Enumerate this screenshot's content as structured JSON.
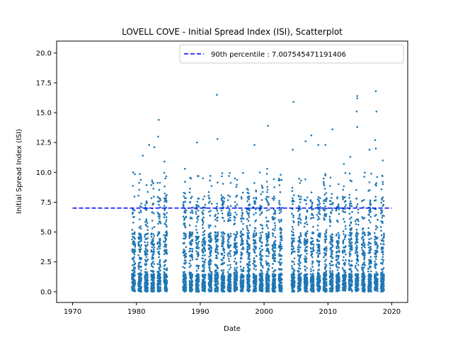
{
  "chart_data": {
    "type": "scatter",
    "title": "LOVELL COVE - Initial Spread Index (ISI), Scatterplot",
    "xlabel": "Date",
    "ylabel": "Initial Spread Index (ISI)",
    "xlim": [
      1967.5,
      2022.5
    ],
    "ylim": [
      -0.9,
      21.0
    ],
    "x_ticks": [
      1970,
      1980,
      1990,
      2000,
      2010,
      2020
    ],
    "x_tick_labels": [
      "1970",
      "1980",
      "1990",
      "2000",
      "2010",
      "2020"
    ],
    "y_ticks": [
      0.0,
      2.5,
      5.0,
      7.5,
      10.0,
      12.5,
      15.0,
      17.5,
      20.0
    ],
    "y_tick_labels": [
      "0.0",
      "2.5",
      "5.0",
      "7.5",
      "10.0",
      "12.5",
      "15.0",
      "17.5",
      "20.0"
    ],
    "grid": false,
    "legend_position": "top-right",
    "marker_color": "#1f77b4",
    "reference_line": {
      "label": "90th percentile : 7.007545471191406",
      "y": 7.007545471191406,
      "x_range": [
        1970,
        2020
      ],
      "color": "#0000ff",
      "style": "dashed"
    },
    "season_ranges": [
      [
        1979.3,
        1979.8
      ],
      [
        1980.3,
        1980.8
      ],
      [
        1981.3,
        1981.8
      ],
      [
        1982.3,
        1982.8
      ],
      [
        1983.3,
        1983.8
      ],
      [
        1984.3,
        1984.8
      ],
      [
        1987.3,
        1987.8
      ],
      [
        1988.3,
        1988.8
      ],
      [
        1989.3,
        1989.8
      ],
      [
        1990.3,
        1990.8
      ],
      [
        1991.3,
        1991.8
      ],
      [
        1992.3,
        1992.8
      ],
      [
        1993.3,
        1993.8
      ],
      [
        1994.3,
        1994.8
      ],
      [
        1995.3,
        1995.8
      ],
      [
        1996.3,
        1996.8
      ],
      [
        1997.3,
        1997.8
      ],
      [
        1998.3,
        1998.8
      ],
      [
        1999.3,
        1999.8
      ],
      [
        2000.3,
        2000.8
      ],
      [
        2001.3,
        2001.8
      ],
      [
        2002.3,
        2002.8
      ],
      [
        2004.3,
        2004.8
      ],
      [
        2005.3,
        2005.8
      ],
      [
        2006.3,
        2006.8
      ],
      [
        2007.3,
        2007.8
      ],
      [
        2008.3,
        2008.8
      ],
      [
        2009.3,
        2009.8
      ],
      [
        2010.3,
        2010.8
      ],
      [
        2011.3,
        2011.8
      ],
      [
        2012.3,
        2012.8
      ],
      [
        2013.3,
        2013.8
      ],
      [
        2014.3,
        2014.8
      ],
      [
        2015.3,
        2015.8
      ],
      [
        2016.3,
        2016.8
      ],
      [
        2017.3,
        2017.8
      ],
      [
        2018.3,
        2018.8
      ]
    ],
    "points_notable": [
      {
        "x": 1979.5,
        "y": 10.0
      },
      {
        "x": 1981.0,
        "y": 11.4
      },
      {
        "x": 1982.0,
        "y": 12.3
      },
      {
        "x": 1982.8,
        "y": 12.1
      },
      {
        "x": 1983.5,
        "y": 14.4
      },
      {
        "x": 1983.4,
        "y": 13.0
      },
      {
        "x": 1984.4,
        "y": 10.9
      },
      {
        "x": 1987.6,
        "y": 10.3
      },
      {
        "x": 1989.5,
        "y": 12.5
      },
      {
        "x": 1992.6,
        "y": 16.5
      },
      {
        "x": 1992.7,
        "y": 12.8
      },
      {
        "x": 1994.5,
        "y": 9.7
      },
      {
        "x": 1998.5,
        "y": 12.3
      },
      {
        "x": 2000.6,
        "y": 13.9
      },
      {
        "x": 2000.5,
        "y": 10.3
      },
      {
        "x": 2002.6,
        "y": 9.8
      },
      {
        "x": 2004.6,
        "y": 15.9
      },
      {
        "x": 2004.5,
        "y": 11.9
      },
      {
        "x": 2006.5,
        "y": 12.6
      },
      {
        "x": 2007.4,
        "y": 13.1
      },
      {
        "x": 2008.5,
        "y": 12.3
      },
      {
        "x": 2009.6,
        "y": 12.3
      },
      {
        "x": 2010.7,
        "y": 13.6
      },
      {
        "x": 2012.5,
        "y": 10.7
      },
      {
        "x": 2013.5,
        "y": 11.3
      },
      {
        "x": 2014.6,
        "y": 16.4
      },
      {
        "x": 2014.6,
        "y": 16.2
      },
      {
        "x": 2014.5,
        "y": 15.1
      },
      {
        "x": 2014.6,
        "y": 13.8
      },
      {
        "x": 2016.5,
        "y": 11.9
      },
      {
        "x": 2017.5,
        "y": 16.8
      },
      {
        "x": 2017.6,
        "y": 15.1
      },
      {
        "x": 2017.4,
        "y": 12.7
      },
      {
        "x": 2017.5,
        "y": 12.0
      },
      {
        "x": 2018.6,
        "y": 11.0
      },
      {
        "x": 2018.6,
        "y": 9.2
      }
    ]
  }
}
